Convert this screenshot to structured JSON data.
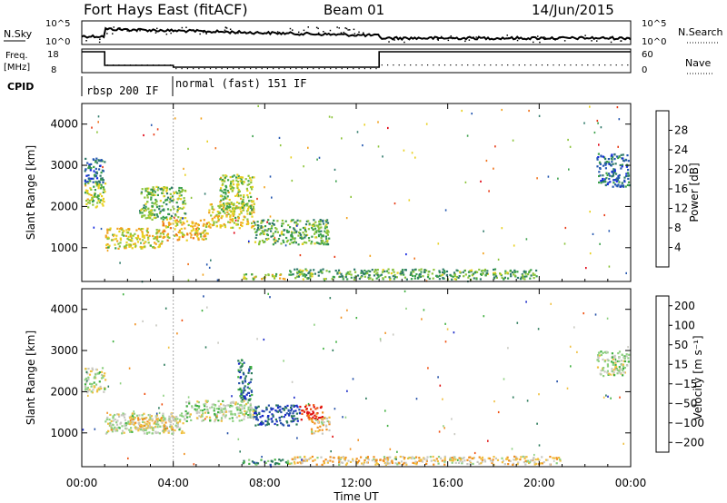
{
  "header": {
    "station": "Fort Hays East (fitACF)",
    "beam": "Beam 01",
    "date": "14/Jun/2015"
  },
  "top_panels": {
    "nsky_label": "N.Sky",
    "nsky_ticks": [
      "10^5",
      "10^0"
    ],
    "nsearch_label": "N.Search",
    "nsearch_ticks": [
      "10^5",
      "10^0"
    ],
    "freq_label_line1": "Freq.",
    "freq_label_line2": "[MHz]",
    "freq_ticks": [
      "18",
      "8"
    ],
    "nave_label": "Nave",
    "nave_ticks": [
      "60",
      "0"
    ],
    "cpid_label": "CPID",
    "cpid_segments": [
      {
        "label": "rbsp 200 IF",
        "start_hour": 0,
        "end_hour": 3.9
      },
      {
        "label": "normal (fast) 151 IF",
        "start_hour": 3.9,
        "end_hour": 24
      }
    ],
    "freq_segments": [
      {
        "start_hour": 0,
        "end_hour": 1.0,
        "freq_level": "high"
      },
      {
        "start_hour": 1.0,
        "end_hour": 4.0,
        "freq_level": "mid"
      },
      {
        "start_hour": 4.0,
        "end_hour": 13.0,
        "freq_level": "low"
      },
      {
        "start_hour": 13.0,
        "end_hour": 24.0,
        "freq_level": "high"
      }
    ]
  },
  "chart_data": [
    {
      "type": "heatmap",
      "name": "power",
      "ylabel": "Slant Range [km]",
      "xlabel": "",
      "ylim": [
        180,
        4500
      ],
      "xlim": [
        0,
        24
      ],
      "yticks": [
        "1000",
        "2000",
        "3000",
        "4000"
      ],
      "xticks": [
        "00:00",
        "04:00",
        "08:00",
        "12:00",
        "16:00",
        "20:00",
        "00:00"
      ],
      "colorbar": {
        "label": "Power [dB]",
        "ticks": [
          "4",
          "8",
          "12",
          "16",
          "20",
          "24",
          "28"
        ],
        "colors": [
          "#1024e0",
          "#2457b0",
          "#2f7a6a",
          "#3aa04a",
          "#8cc43a",
          "#e8d020",
          "#f2a21c",
          "#f07018",
          "#e83a14",
          "#e00010"
        ]
      },
      "scatter_regions": [
        {
          "t0": 0.1,
          "t1": 1.0,
          "r0": 2000,
          "r1": 2600,
          "value": 0.45
        },
        {
          "t0": 0.1,
          "t1": 1.0,
          "r0": 2600,
          "r1": 3200,
          "value": 0.2
        },
        {
          "t0": 1.0,
          "t1": 3.5,
          "r0": 1000,
          "r1": 1500,
          "value": 0.55
        },
        {
          "t0": 3.5,
          "t1": 5.5,
          "r0": 1200,
          "r1": 1700,
          "value": 0.6
        },
        {
          "t0": 5.5,
          "t1": 7.5,
          "r0": 1500,
          "r1": 2100,
          "value": 0.55
        },
        {
          "t0": 7.5,
          "t1": 10.8,
          "r0": 1100,
          "r1": 1700,
          "value": 0.35
        },
        {
          "t0": 2.5,
          "t1": 4.5,
          "r0": 1700,
          "r1": 2500,
          "value": 0.4
        },
        {
          "t0": 6.0,
          "t1": 7.5,
          "r0": 1900,
          "r1": 2800,
          "value": 0.45
        },
        {
          "t0": 7.0,
          "t1": 9.0,
          "r0": 250,
          "r1": 380,
          "value": 0.5
        },
        {
          "t0": 9.0,
          "t1": 20.0,
          "r0": 250,
          "r1": 500,
          "value": 0.35
        },
        {
          "t0": 22.5,
          "t1": 23.9,
          "r0": 2500,
          "r1": 3300,
          "value": 0.2
        }
      ]
    },
    {
      "type": "heatmap",
      "name": "velocity",
      "ylabel": "Slant Range [km]",
      "xlabel": "Time UT",
      "ylim": [
        180,
        4500
      ],
      "xlim": [
        0,
        24
      ],
      "yticks": [
        "1000",
        "2000",
        "3000",
        "4000"
      ],
      "xticks": [
        "00:00",
        "04:00",
        "08:00",
        "12:00",
        "16:00",
        "20:00",
        "00:00"
      ],
      "colorbar": {
        "label": "Velocity [m s⁻¹]",
        "ticks": [
          "200",
          "100",
          "50",
          "15",
          "−15",
          "−50",
          "−100",
          "−200"
        ],
        "colors": [
          "#1a2ac8",
          "#2450a8",
          "#2a7a5a",
          "#40b040",
          "#8ed080",
          "#c8c8c0",
          "#f0c040",
          "#f09020",
          "#f05010",
          "#e01010"
        ]
      },
      "scatter_regions": [
        {
          "t0": 0.1,
          "t1": 1.0,
          "r0": 2000,
          "r1": 2600,
          "value": 0.5
        },
        {
          "t0": 1.0,
          "t1": 4.5,
          "r0": 1000,
          "r1": 1500,
          "value": 0.55
        },
        {
          "t0": 2.0,
          "t1": 4.0,
          "r0": 1100,
          "r1": 1400,
          "value": 0.65
        },
        {
          "t0": 4.5,
          "t1": 7.5,
          "r0": 1300,
          "r1": 1800,
          "value": 0.5
        },
        {
          "t0": 7.5,
          "t1": 9.5,
          "r0": 1200,
          "r1": 1700,
          "value": 0.1
        },
        {
          "t0": 9.5,
          "t1": 10.5,
          "r0": 1300,
          "r1": 1700,
          "value": 0.95
        },
        {
          "t0": 10.0,
          "t1": 10.8,
          "r0": 1000,
          "r1": 1400,
          "value": 0.65
        },
        {
          "t0": 6.8,
          "t1": 7.4,
          "r0": 1800,
          "r1": 2800,
          "value": 0.2
        },
        {
          "t0": 7.0,
          "t1": 9.0,
          "r0": 250,
          "r1": 380,
          "value": 0.3
        },
        {
          "t0": 9.0,
          "t1": 21.0,
          "r0": 250,
          "r1": 450,
          "value": 0.65
        },
        {
          "t0": 22.5,
          "t1": 23.9,
          "r0": 2400,
          "r1": 3000,
          "value": 0.5
        }
      ]
    }
  ]
}
